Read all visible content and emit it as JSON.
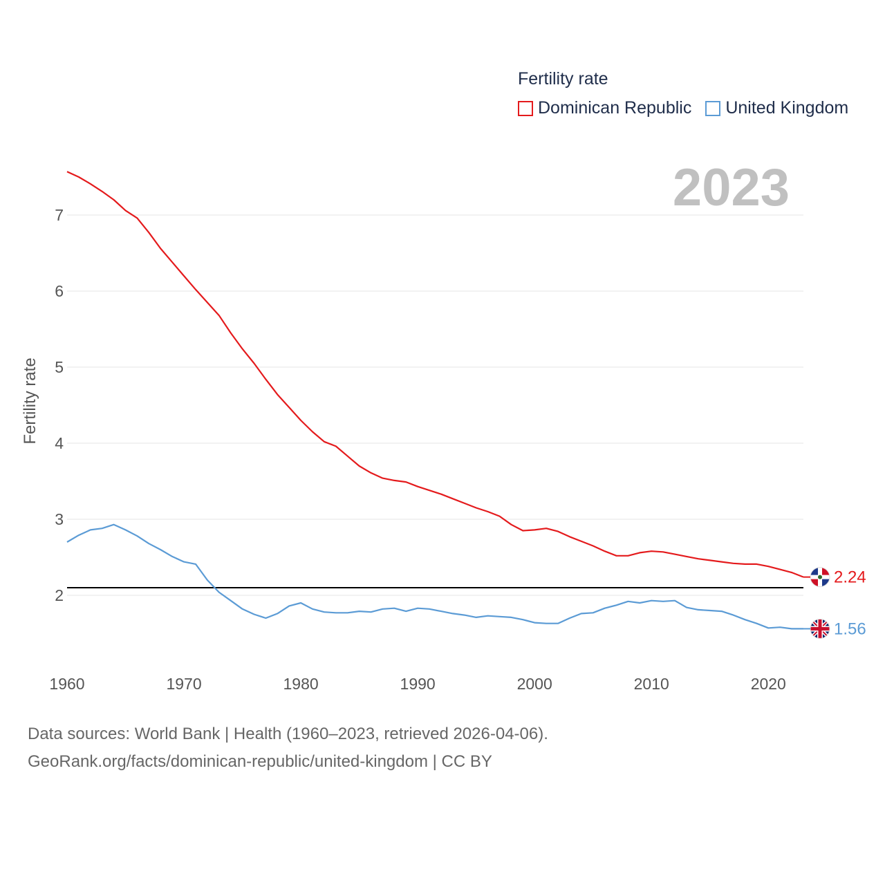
{
  "legend": {
    "title": "Fertility rate",
    "items": [
      {
        "label": "Dominican Republic",
        "color": "#e41a1c"
      },
      {
        "label": "United Kingdom",
        "color": "#5b9bd5"
      }
    ]
  },
  "year_label": "2023",
  "y_axis_title": "Fertility rate",
  "footer": {
    "line1": "Data sources: World Bank | Health (1960–2023, retrieved 2026-04-06).",
    "line2": "GeoRank.org/facts/dominican-republic/united-kingdom | CC BY"
  },
  "chart_data": {
    "type": "line",
    "title": "Fertility rate",
    "xlabel": "",
    "ylabel": "Fertility rate",
    "xlim": [
      1960,
      2023
    ],
    "ylim": [
      1.2,
      7.6
    ],
    "x_ticks": [
      1960,
      1970,
      1980,
      1990,
      2000,
      2010,
      2020
    ],
    "y_ticks": [
      2,
      3,
      4,
      5,
      6,
      7
    ],
    "grid": true,
    "legend_position": "top-right",
    "reference_line": {
      "y": 2.1,
      "color": "#000000"
    },
    "x": [
      1960,
      1961,
      1962,
      1963,
      1964,
      1965,
      1966,
      1967,
      1968,
      1969,
      1970,
      1971,
      1972,
      1973,
      1974,
      1975,
      1976,
      1977,
      1978,
      1979,
      1980,
      1981,
      1982,
      1983,
      1984,
      1985,
      1986,
      1987,
      1988,
      1989,
      1990,
      1991,
      1992,
      1993,
      1994,
      1995,
      1996,
      1997,
      1998,
      1999,
      2000,
      2001,
      2002,
      2003,
      2004,
      2005,
      2006,
      2007,
      2008,
      2009,
      2010,
      2011,
      2012,
      2013,
      2014,
      2015,
      2016,
      2017,
      2018,
      2019,
      2020,
      2021,
      2022,
      2023
    ],
    "series": [
      {
        "name": "Dominican Republic",
        "color": "#e41a1c",
        "end_label": "2.24",
        "values": [
          7.57,
          7.5,
          7.41,
          7.31,
          7.2,
          7.06,
          6.96,
          6.77,
          6.56,
          6.38,
          6.2,
          6.02,
          5.85,
          5.68,
          5.45,
          5.24,
          5.05,
          4.84,
          4.64,
          4.47,
          4.3,
          4.15,
          4.02,
          3.96,
          3.83,
          3.7,
          3.61,
          3.54,
          3.51,
          3.49,
          3.43,
          3.38,
          3.33,
          3.27,
          3.21,
          3.15,
          3.1,
          3.04,
          2.93,
          2.85,
          2.86,
          2.88,
          2.84,
          2.77,
          2.71,
          2.65,
          2.58,
          2.52,
          2.52,
          2.56,
          2.58,
          2.57,
          2.54,
          2.51,
          2.48,
          2.46,
          2.44,
          2.42,
          2.41,
          2.41,
          2.38,
          2.34,
          2.3,
          2.24
        ]
      },
      {
        "name": "United Kingdom",
        "color": "#5b9bd5",
        "end_label": "1.56",
        "values": [
          2.7,
          2.79,
          2.86,
          2.88,
          2.93,
          2.86,
          2.78,
          2.68,
          2.6,
          2.51,
          2.44,
          2.41,
          2.2,
          2.04,
          1.93,
          1.82,
          1.75,
          1.7,
          1.76,
          1.86,
          1.9,
          1.82,
          1.78,
          1.77,
          1.77,
          1.79,
          1.78,
          1.82,
          1.83,
          1.79,
          1.83,
          1.82,
          1.79,
          1.76,
          1.74,
          1.71,
          1.73,
          1.72,
          1.71,
          1.68,
          1.64,
          1.63,
          1.63,
          1.7,
          1.76,
          1.77,
          1.83,
          1.87,
          1.92,
          1.9,
          1.93,
          1.92,
          1.93,
          1.84,
          1.81,
          1.8,
          1.79,
          1.74,
          1.68,
          1.63,
          1.57,
          1.58,
          1.56,
          1.56
        ]
      }
    ]
  }
}
